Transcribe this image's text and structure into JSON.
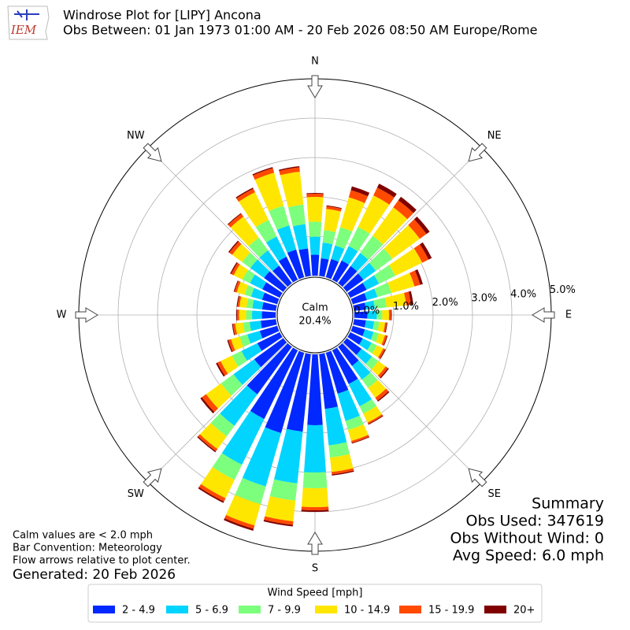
{
  "chart_data": {
    "type": "windrose",
    "title": "Windrose Plot for [LIPY] Ancona",
    "subtitle": "Obs Between: 01 Jan 1973 01:00 AM - 20 Feb 2026 08:50 AM Europe/Rome",
    "logo": "IEM",
    "x": [
      0,
      10,
      20,
      30,
      40,
      50,
      60,
      70,
      80,
      90,
      100,
      110,
      120,
      130,
      140,
      150,
      160,
      170,
      180,
      190,
      200,
      210,
      220,
      230,
      240,
      250,
      260,
      270,
      280,
      290,
      300,
      310,
      320,
      330,
      340,
      350
    ],
    "series": [
      {
        "name": "2 - 4.9",
        "color": "#0028ff",
        "values": [
          0.53,
          0.45,
          0.48,
          0.54,
          0.54,
          0.52,
          0.46,
          0.37,
          0.3,
          0.33,
          0.3,
          0.32,
          0.35,
          0.46,
          0.6,
          0.95,
          1.08,
          1.4,
          1.8,
          1.98,
          2.12,
          1.94,
          1.49,
          0.91,
          0.63,
          0.46,
          0.39,
          0.35,
          0.35,
          0.4,
          0.49,
          0.6,
          0.55,
          0.65,
          0.73,
          0.7
        ]
      },
      {
        "name": "5 - 6.9",
        "color": "#00d4ff",
        "values": [
          0.46,
          0.4,
          0.36,
          0.41,
          0.41,
          0.39,
          0.35,
          0.28,
          0.23,
          0.24,
          0.21,
          0.23,
          0.25,
          0.33,
          0.43,
          0.63,
          0.72,
          0.93,
          1.2,
          1.32,
          1.41,
          1.29,
          0.99,
          0.65,
          0.45,
          0.33,
          0.28,
          0.25,
          0.25,
          0.29,
          0.35,
          0.43,
          0.48,
          0.57,
          0.64,
          0.62
        ]
      },
      {
        "name": "7 - 9.9",
        "color": "#7cff7c",
        "values": [
          0.38,
          0.32,
          0.48,
          0.54,
          0.54,
          0.52,
          0.46,
          0.37,
          0.3,
          0.14,
          0.13,
          0.14,
          0.15,
          0.2,
          0.26,
          0.21,
          0.24,
          0.31,
          0.4,
          0.44,
          0.47,
          0.43,
          0.33,
          0.39,
          0.27,
          0.2,
          0.17,
          0.15,
          0.15,
          0.17,
          0.21,
          0.26,
          0.4,
          0.47,
          0.52,
          0.5
        ]
      },
      {
        "name": "10 - 14.9",
        "color": "#ffe600",
        "values": [
          0.63,
          0.54,
          0.79,
          0.89,
          0.89,
          0.86,
          0.76,
          0.61,
          0.5,
          0.17,
          0.15,
          0.16,
          0.18,
          0.23,
          0.31,
          0.25,
          0.29,
          0.37,
          0.48,
          0.53,
          0.56,
          0.52,
          0.4,
          0.47,
          0.32,
          0.23,
          0.2,
          0.18,
          0.18,
          0.21,
          0.25,
          0.31,
          0.66,
          0.78,
          0.87,
          0.84
        ]
      },
      {
        "name": "15 - 19.9",
        "color": "#ff4a00",
        "values": [
          0.08,
          0.07,
          0.19,
          0.22,
          0.22,
          0.21,
          0.18,
          0.15,
          0.12,
          0.05,
          0.04,
          0.05,
          0.05,
          0.07,
          0.09,
          0.04,
          0.05,
          0.06,
          0.08,
          0.09,
          0.09,
          0.09,
          0.07,
          0.13,
          0.09,
          0.07,
          0.06,
          0.05,
          0.05,
          0.06,
          0.07,
          0.09,
          0.09,
          0.1,
          0.12,
          0.11
        ]
      },
      {
        "name": "20+",
        "color": "#800000",
        "values": [
          0.02,
          0.02,
          0.1,
          0.11,
          0.11,
          0.1,
          0.09,
          0.07,
          0.06,
          0.02,
          0.02,
          0.02,
          0.02,
          0.03,
          0.03,
          0.02,
          0.02,
          0.03,
          0.04,
          0.04,
          0.05,
          0.04,
          0.03,
          0.05,
          0.04,
          0.03,
          0.02,
          0.02,
          0.02,
          0.02,
          0.03,
          0.03,
          0.02,
          0.03,
          0.03,
          0.03
        ]
      }
    ],
    "rlim": [
      0,
      5
    ],
    "rticks": [
      {
        "value": 0,
        "label": "0.0%"
      },
      {
        "value": 1,
        "label": "1.0%"
      },
      {
        "value": 2,
        "label": "2.0%"
      },
      {
        "value": 3,
        "label": "3.0%"
      },
      {
        "value": 4,
        "label": "4.0%"
      },
      {
        "value": 5,
        "label": "5.0%"
      }
    ],
    "compass": [
      {
        "value": 0,
        "label": "N"
      },
      {
        "value": 45,
        "label": "NE"
      },
      {
        "value": 90,
        "label": "E"
      },
      {
        "value": 135,
        "label": "SE"
      },
      {
        "value": 180,
        "label": "S"
      },
      {
        "value": 225,
        "label": "SW"
      },
      {
        "value": 270,
        "label": "W"
      },
      {
        "value": 315,
        "label": "NW"
      }
    ],
    "calm_title": "Calm",
    "calm_value": 20.4,
    "calm_value_label": "20.4%",
    "legend_title": "Wind Speed [mph]",
    "notes": [
      "Calm values are < 2.0 mph",
      "Bar Convention: Meteorology",
      "Flow arrows relative to plot center."
    ],
    "generated": "Generated: 20 Feb 2026",
    "summary": [
      "Summary",
      "Obs Used: 347619",
      "Obs Without Wind: 0",
      "Avg Speed: 6.0 mph"
    ],
    "grid": true
  }
}
